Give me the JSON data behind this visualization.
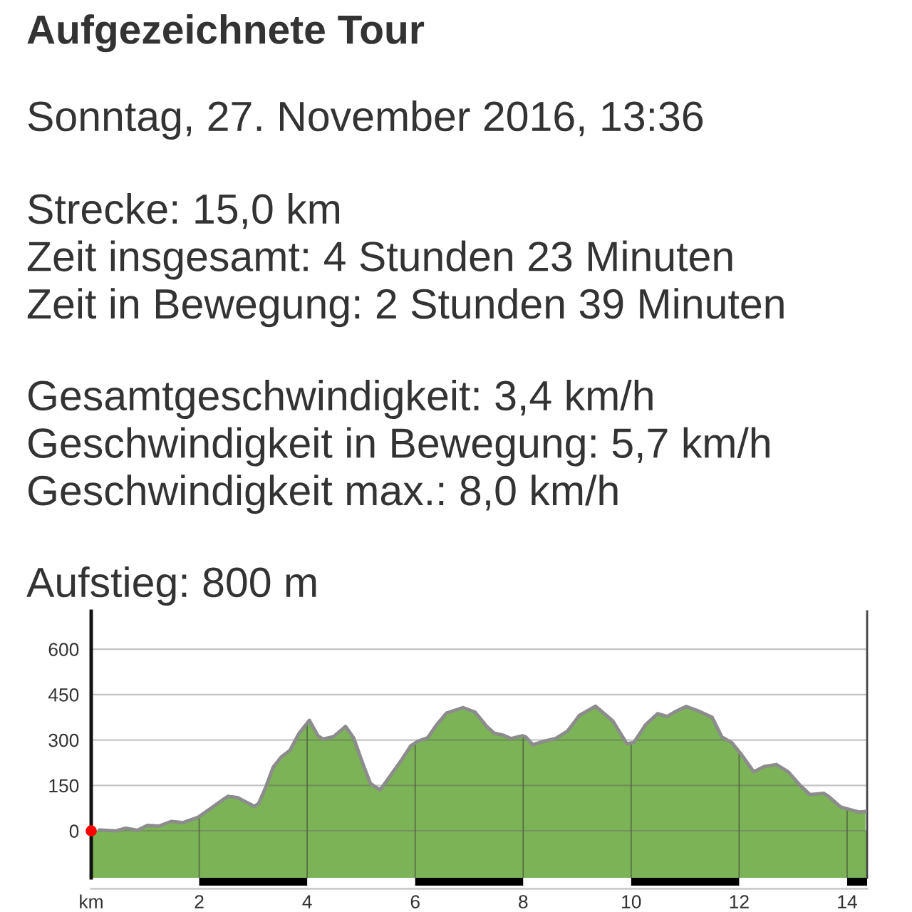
{
  "chart_data": {
    "type": "area",
    "title": "Aufgezeichnete Tour",
    "subtitle": "Sonntag, 27. November 2016, 13:36",
    "annotations": [
      "Strecke: 15,0 km\nZeit insgesamt: 4 Stunden 23 Minuten\nZeit in Bewegung: 2 Stunden 39 Minuten",
      "Gesamtgeschwindigkeit: 3,4 km/h\nGeschwindigkeit in Bewegung: 5,7 km/h\nGeschwindigkeit max.: 8,0 km/h",
      "Aufstieg: 800 m"
    ],
    "series": [
      {
        "color": "#7cb356",
        "x": [
          0.15,
          0.46,
          0.64,
          0.86,
          1.04,
          1.26,
          1.48,
          1.7,
          1.98,
          2.23,
          2.4,
          2.53,
          2.71,
          3.02,
          3.1,
          3.23,
          3.37,
          3.52,
          3.68,
          3.85,
          4.04,
          4.2,
          4.29,
          4.49,
          4.71,
          4.86,
          5.04,
          5.17,
          5.35,
          5.52,
          5.74,
          5.92,
          6.05,
          6.23,
          6.4,
          6.58,
          6.89,
          7.11,
          7.33,
          7.46,
          7.63,
          7.77,
          7.99,
          8.05,
          8.18,
          8.38,
          8.6,
          8.82,
          9.04,
          9.34,
          9.66,
          9.92,
          10.05,
          10.27,
          10.49,
          10.67,
          10.8,
          11.02,
          11.24,
          11.5,
          11.68,
          11.86,
          12.03,
          12.27,
          12.47,
          12.69,
          12.91,
          13.13,
          13.31,
          13.57,
          13.66,
          13.88,
          14.1,
          14.23,
          14.34
        ],
        "values": [
          3,
          0,
          9,
          2,
          18,
          16,
          31,
          27,
          45,
          76,
          98,
          114,
          110,
          81,
          90,
          143,
          210,
          244,
          266,
          322,
          365,
          314,
          303,
          311,
          345,
          307,
          217,
          157,
          135,
          177,
          232,
          281,
          296,
          307,
          351,
          389,
          407,
          392,
          344,
          323,
          316,
          305,
          314,
          310,
          284,
          296,
          305,
          329,
          381,
          412,
          363,
          288,
          292,
          351,
          387,
          378,
          392,
          411,
          396,
          375,
          310,
          292,
          255,
          195,
          213,
          219,
          195,
          150,
          120,
          124,
          113,
          79,
          68,
          62,
          64
        ]
      },
      {
        "type": "scatter",
        "color": "#ff0000",
        "marker": "circle",
        "x": [
          0
        ],
        "values": [
          0
        ]
      }
    ],
    "bands": [
      {
        "axis": "y",
        "from": -155,
        "to": 0,
        "color": "#7cb356"
      }
    ],
    "xlim": [
      0,
      14.37
    ],
    "xticks": [
      {
        "value": 0,
        "label": "km"
      },
      2,
      4,
      6,
      8,
      10,
      12,
      14
    ],
    "ylim": [
      -155,
      725
    ],
    "yticks": [
      0,
      150,
      300,
      450,
      600
    ],
    "grid": true
  }
}
